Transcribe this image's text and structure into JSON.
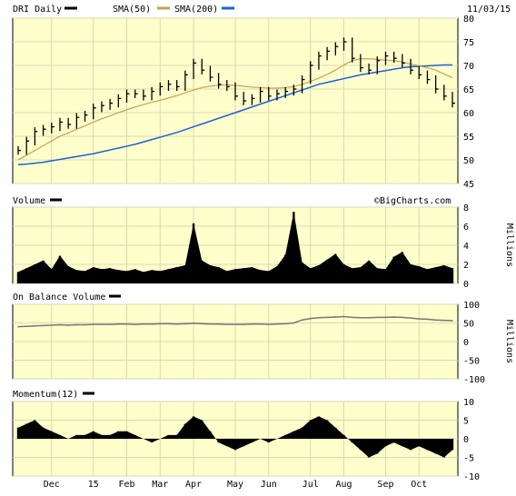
{
  "header": {
    "symbol_label": "DRI Daily",
    "sma50_label": "SMA(50)",
    "sma200_label": "SMA(200)",
    "date": "11/03/15",
    "watermark": "©BigCharts.com"
  },
  "colors": {
    "panel_bg": "#ffffcc",
    "grid": "#d9d9b0",
    "price": "#000000",
    "sma50": "#c8a050",
    "sma200": "#1e5fd8",
    "volume": "#000000",
    "obv": "#777777",
    "momentum": "#000000"
  },
  "chart_data": [
    {
      "type": "line",
      "title": "DRI Daily",
      "series": [
        {
          "name": "DRI Daily",
          "x": [
            "2014-11-03",
            "2014-11-10",
            "2014-11-17",
            "2014-11-24",
            "2014-12-01",
            "2014-12-08",
            "2014-12-15",
            "2014-12-22",
            "2014-12-29",
            "2015-01-05",
            "2015-01-12",
            "2015-01-19",
            "2015-01-26",
            "2015-02-02",
            "2015-02-09",
            "2015-02-16",
            "2015-02-23",
            "2015-03-02",
            "2015-03-09",
            "2015-03-16",
            "2015-03-23",
            "2015-03-30",
            "2015-04-06",
            "2015-04-13",
            "2015-04-20",
            "2015-04-27",
            "2015-05-04",
            "2015-05-11",
            "2015-05-18",
            "2015-05-26",
            "2015-06-01",
            "2015-06-08",
            "2015-06-15",
            "2015-06-22",
            "2015-06-29",
            "2015-07-06",
            "2015-07-13",
            "2015-07-20",
            "2015-07-27",
            "2015-08-03",
            "2015-08-10",
            "2015-08-17",
            "2015-08-24",
            "2015-08-31",
            "2015-09-08",
            "2015-09-14",
            "2015-09-21",
            "2015-09-28",
            "2015-10-05",
            "2015-10-12",
            "2015-10-19",
            "2015-10-26",
            "2015-11-02"
          ],
          "values": [
            52,
            54,
            56,
            56.5,
            57,
            58,
            57.5,
            59,
            59.5,
            61,
            61.5,
            62,
            63,
            64,
            64,
            63.5,
            64.5,
            65.5,
            66,
            65.5,
            68,
            70.5,
            69,
            67.5,
            66,
            65.5,
            63.5,
            62.5,
            63,
            64.5,
            63.5,
            64,
            64.5,
            65,
            67,
            70,
            72,
            73,
            74,
            75,
            71.5,
            69.5,
            69,
            71,
            72,
            71.5,
            70.5,
            69,
            68,
            67,
            65,
            63.5,
            62
          ]
        },
        {
          "name": "SMA(50)",
          "values": [
            50,
            51,
            52,
            53,
            54,
            55,
            55.7,
            56.5,
            57.2,
            58,
            58.7,
            59.3,
            60,
            60.6,
            61.2,
            61.7,
            62.2,
            62.6,
            63.1,
            63.6,
            64.2,
            64.8,
            65.3,
            65.6,
            65.8,
            65.9,
            65.8,
            65.6,
            65.4,
            65.3,
            65.2,
            65.2,
            65.3,
            65.5,
            66,
            66.6,
            67.3,
            68.1,
            69,
            70.1,
            71,
            71.4,
            71.4,
            71.3,
            71.1,
            71,
            70.7,
            70.3,
            69.9,
            69.5,
            69,
            68.2,
            67.4
          ]
        },
        {
          "name": "SMA(200)",
          "values": [
            49,
            49.1,
            49.3,
            49.5,
            49.8,
            50.1,
            50.4,
            50.7,
            51,
            51.3,
            51.7,
            52.1,
            52.5,
            52.9,
            53.3,
            53.8,
            54.3,
            54.8,
            55.3,
            55.8,
            56.4,
            57,
            57.6,
            58.2,
            58.8,
            59.4,
            60,
            60.6,
            61.2,
            61.8,
            62.4,
            63,
            63.6,
            64.2,
            64.8,
            65.4,
            66,
            66.4,
            66.8,
            67.2,
            67.6,
            68,
            68.3,
            68.6,
            68.9,
            69.2,
            69.5,
            69.7,
            69.8,
            69.9,
            70,
            70.1,
            70.1
          ]
        }
      ],
      "ylim": [
        45,
        80
      ],
      "yticks": [
        "80",
        "75",
        "70",
        "65",
        "60",
        "55",
        "50",
        "45"
      ],
      "grid": true
    },
    {
      "type": "bar",
      "title": "Volume",
      "ylabel": "Millions",
      "ylim": [
        0,
        8
      ],
      "yticks": [
        "8",
        "6",
        "4",
        "2",
        "0"
      ],
      "values": [
        1.2,
        1.6,
        2.0,
        2.4,
        1.5,
        2.9,
        1.8,
        1.4,
        1.3,
        1.7,
        1.5,
        1.6,
        1.4,
        1.3,
        1.5,
        1.2,
        1.4,
        1.3,
        1.5,
        1.7,
        1.9,
        6.3,
        2.4,
        1.9,
        1.7,
        1.3,
        1.5,
        1.6,
        1.7,
        1.4,
        1.3,
        1.8,
        3.0,
        7.5,
        2.2,
        1.6,
        1.9,
        2.5,
        3.1,
        2.0,
        1.6,
        1.7,
        2.4,
        1.6,
        1.5,
        2.8,
        3.3,
        2.0,
        1.8,
        1.5,
        1.7,
        1.9,
        1.6
      ]
    },
    {
      "type": "line",
      "title": "On Balance Volume",
      "ylabel": "Millions",
      "ylim": [
        -100,
        100
      ],
      "yticks": [
        "100",
        "50",
        "0",
        "-50",
        "-100"
      ],
      "values": [
        40,
        41,
        42,
        43,
        44,
        45,
        44,
        45,
        45,
        46,
        46,
        46,
        47,
        47,
        46,
        47,
        47,
        48,
        48,
        47,
        48,
        49,
        48,
        47,
        47,
        46,
        46,
        46,
        47,
        47,
        46,
        47,
        48,
        50,
        58,
        62,
        64,
        65,
        66,
        67,
        65,
        64,
        64,
        65,
        65,
        66,
        65,
        63,
        61,
        60,
        58,
        57,
        56
      ]
    },
    {
      "type": "bar",
      "title": "Momentum(12)",
      "ylim": [
        -10,
        10
      ],
      "yticks": [
        "10",
        "5",
        "0",
        "-5",
        "-10"
      ],
      "values": [
        3,
        4,
        5,
        3,
        2,
        1,
        0,
        1,
        1,
        2,
        1,
        1,
        2,
        2,
        1,
        0,
        -1,
        0,
        1,
        1,
        4,
        6,
        5,
        2,
        -1,
        -2,
        -3,
        -2,
        -1,
        0,
        -1,
        0,
        1,
        2,
        3,
        5,
        6,
        5,
        3,
        1,
        -1,
        -3,
        -5,
        -4,
        -2,
        -1,
        -2,
        -3,
        -2,
        -3,
        -4,
        -5,
        -3
      ]
    }
  ],
  "x_axis": {
    "labels": [
      "Dec",
      "15",
      "Feb",
      "Mar",
      "Apr",
      "May",
      "Jun",
      "Jul",
      "Aug",
      "Sep",
      "Oct"
    ],
    "label_indices": [
      4,
      9,
      13,
      17,
      21,
      26,
      30,
      35,
      39,
      44,
      48
    ]
  }
}
